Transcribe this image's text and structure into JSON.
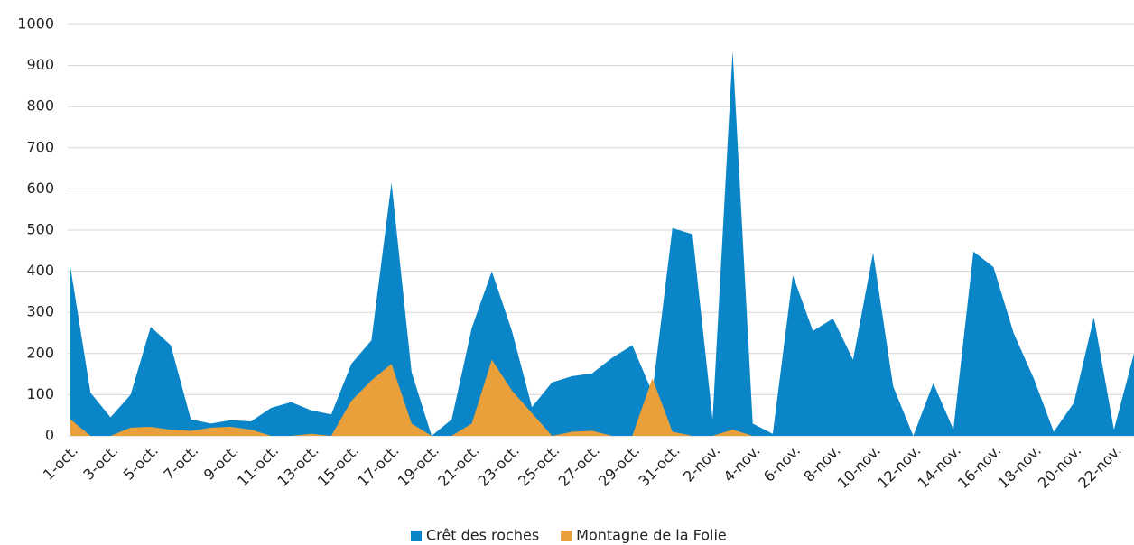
{
  "chart_data": {
    "type": "area",
    "categories": [
      "1-oct.",
      null,
      "3-oct.",
      null,
      "5-oct.",
      null,
      "7-oct.",
      null,
      "9-oct.",
      null,
      "11-oct.",
      null,
      "13-oct.",
      null,
      "15-oct.",
      null,
      "17-oct.",
      null,
      "19-oct.",
      null,
      "21-oct.",
      null,
      "23-oct.",
      null,
      "25-oct.",
      null,
      "27-oct.",
      null,
      "29-oct.",
      null,
      "31-oct.",
      null,
      "2-nov.",
      null,
      "4-nov.",
      null,
      "6-nov.",
      null,
      "8-nov.",
      null,
      "10-nov.",
      null,
      "12-nov.",
      null,
      "14-nov.",
      null,
      "16-nov.",
      null,
      "18-nov.",
      null,
      "20-nov.",
      null,
      "22-nov.",
      null
    ],
    "series": [
      {
        "name": "Crêt des roches",
        "color": "#0a85c8",
        "values": [
          410,
          105,
          45,
          100,
          265,
          220,
          40,
          30,
          38,
          35,
          68,
          82,
          62,
          52,
          175,
          232,
          615,
          155,
          0,
          40,
          262,
          400,
          255,
          70,
          130,
          145,
          152,
          190,
          220,
          105,
          505,
          490,
          40,
          935,
          30,
          5,
          390,
          255,
          285,
          185,
          445,
          120,
          0,
          128,
          15,
          448,
          410,
          250,
          140,
          10,
          80,
          288,
          15,
          200
        ]
      },
      {
        "name": "Montagne de la Folie",
        "color": "#e9a03b",
        "values": [
          40,
          0,
          0,
          20,
          22,
          15,
          12,
          20,
          22,
          15,
          0,
          0,
          5,
          0,
          85,
          135,
          175,
          30,
          0,
          0,
          30,
          185,
          110,
          55,
          0,
          10,
          12,
          0,
          0,
          140,
          10,
          0,
          0,
          15,
          0,
          0,
          0,
          0,
          0,
          0,
          0,
          0,
          0,
          0,
          0,
          0,
          0,
          0,
          0,
          0,
          0,
          0,
          0,
          0
        ]
      }
    ],
    "ylim": [
      0,
      1000
    ],
    "yticks": [
      0,
      100,
      200,
      300,
      400,
      500,
      600,
      700,
      800,
      900,
      1000
    ],
    "grid": true,
    "legend": "bottom"
  }
}
